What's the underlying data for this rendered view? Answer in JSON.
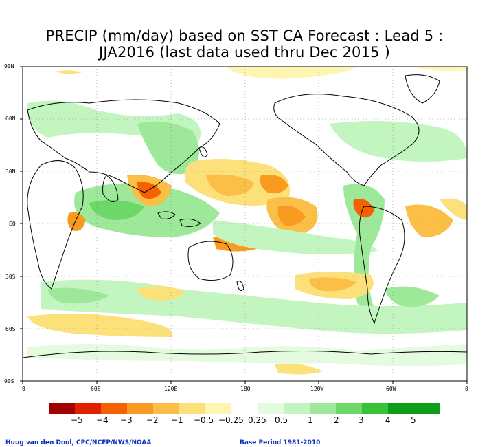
{
  "title": {
    "line1": "PRECIP (mm/day) based on SST CA Forecast : Lead 5 :",
    "line2": "JJA2016 (last data used thru Dec 2015 )"
  },
  "axes": {
    "y_ticks": [
      "90N",
      "60N",
      "30N",
      "EQ",
      "30S",
      "60S",
      "90S"
    ],
    "x_ticks": [
      "0",
      "60E",
      "120E",
      "180",
      "120W",
      "60W",
      "0"
    ]
  },
  "legend": {
    "labels": [
      "−5",
      "−4",
      "−3",
      "−2",
      "−1",
      "−0.5",
      "−0.25",
      "0.25",
      "0.5",
      "1",
      "2",
      "3",
      "4",
      "5"
    ],
    "colors": [
      "#a00000",
      "#e02000",
      "#f56000",
      "#f89b20",
      "#fbbe46",
      "#fce07a",
      "#fdf5b0",
      "#ffffff",
      "#e4fbe0",
      "#c2f5c0",
      "#9ee89a",
      "#6cd868",
      "#38c238",
      "#0c9e16"
    ]
  },
  "credits": {
    "left": "Huug van den Dool, CPC/NCEP/NWS/NOAA",
    "right": "Base Period 1981-2010"
  },
  "colors": {
    "dry_light": "#fce07a",
    "dry_mid": "#fbbe46",
    "dry_strong": "#f89b20",
    "dry_max": "#f56000",
    "wet_light": "#c2f5c0",
    "wet_mid": "#9ee89a",
    "wet_strong": "#6cd868",
    "credit_text": "#1030c0"
  }
}
